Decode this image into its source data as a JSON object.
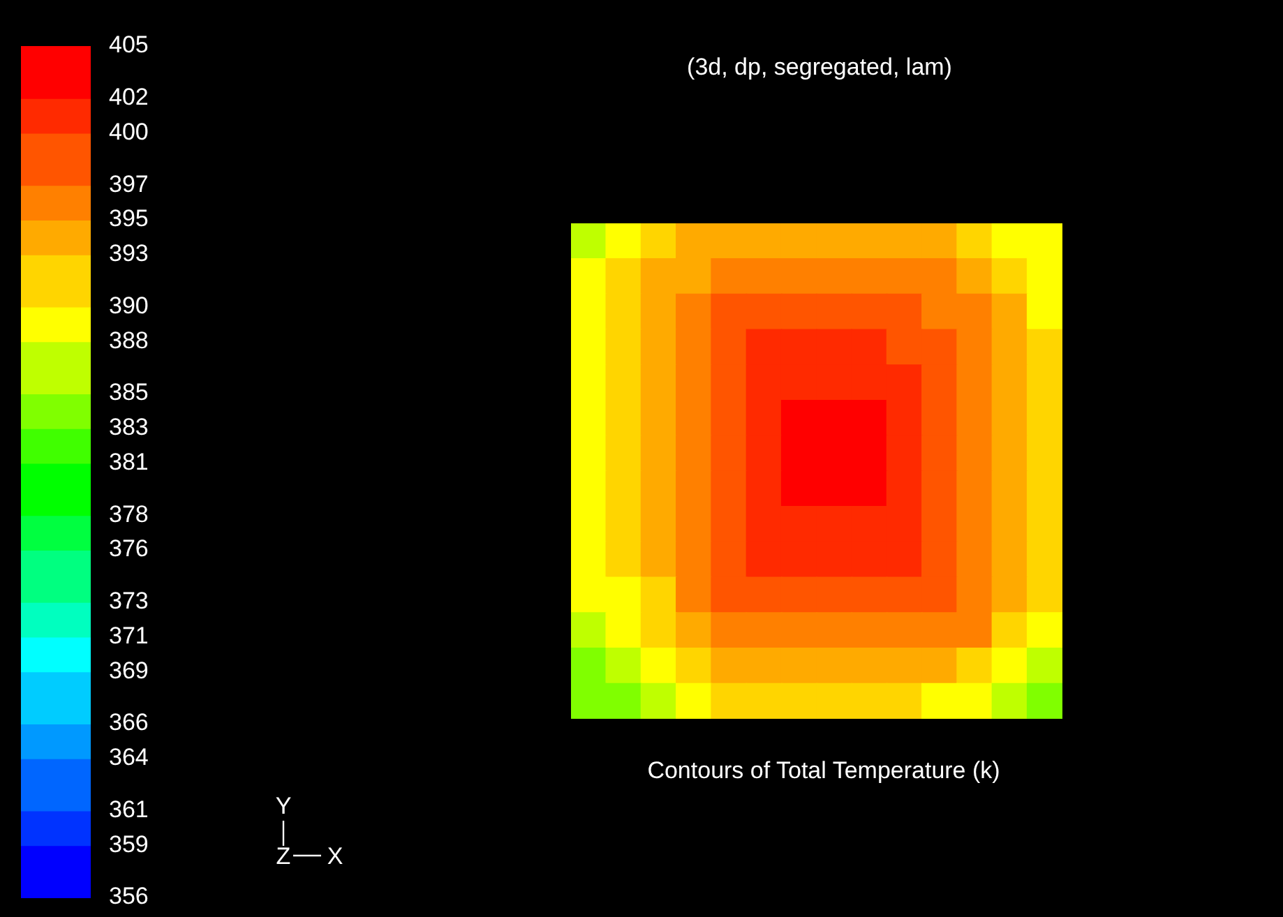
{
  "chart_data": {
    "type": "heatmap",
    "title": "(3d, dp, segregated, lam)",
    "annotations": [
      "Contours of Total Temperature (k)",
      "Y",
      "Z",
      "X"
    ],
    "categories": [
      null,
      null,
      null,
      null,
      null,
      null,
      null,
      null,
      null,
      null,
      null,
      null,
      null,
      null
    ],
    "y_categories": [
      null,
      null,
      null,
      null,
      null,
      null,
      null,
      null,
      null,
      null,
      null,
      null,
      null,
      null
    ],
    "clim": [
      356,
      405
    ],
    "cticks": [
      356,
      359,
      361,
      364,
      366,
      369,
      371,
      373,
      376,
      378,
      381,
      383,
      385,
      388,
      390,
      393,
      395,
      397,
      400,
      402,
      405
    ],
    "cells": [
      [
        386.5,
        389,
        391.5,
        394,
        394,
        394,
        394,
        394,
        394,
        394,
        394,
        391.5,
        389,
        389
      ],
      [
        389,
        391.5,
        394,
        394,
        396,
        396,
        396,
        396,
        396,
        396,
        396,
        394,
        391.5,
        389
      ],
      [
        389,
        391.5,
        394,
        396,
        398.5,
        398.5,
        398.5,
        398.5,
        398.5,
        398.5,
        396,
        396,
        394,
        389
      ],
      [
        389,
        391.5,
        394,
        396,
        398.5,
        401,
        401,
        401,
        401,
        398.5,
        398.5,
        396,
        394,
        391.5
      ],
      [
        389,
        391.5,
        394,
        396,
        398.5,
        401,
        401,
        401,
        401,
        401,
        398.5,
        396,
        394,
        391.5
      ],
      [
        389,
        391.5,
        394,
        396,
        398.5,
        401,
        403.5,
        403.5,
        403.5,
        401,
        398.5,
        396,
        394,
        391.5
      ],
      [
        389,
        391.5,
        394,
        396,
        398.5,
        401,
        403.5,
        403.5,
        403.5,
        401,
        398.5,
        396,
        394,
        391.5
      ],
      [
        389,
        391.5,
        394,
        396,
        398.5,
        401,
        403.5,
        403.5,
        403.5,
        401,
        398.5,
        396,
        394,
        391.5
      ],
      [
        389,
        391.5,
        394,
        396,
        398.5,
        401,
        401,
        401,
        401,
        401,
        398.5,
        396,
        394,
        391.5
      ],
      [
        389,
        391.5,
        394,
        396,
        398.5,
        401,
        401,
        401,
        401,
        401,
        398.5,
        396,
        394,
        391.5
      ],
      [
        389,
        389,
        391.5,
        396,
        398.5,
        398.5,
        398.5,
        398.5,
        398.5,
        398.5,
        398.5,
        396,
        394,
        391.5
      ],
      [
        386.5,
        389,
        391.5,
        394,
        396,
        396,
        396,
        396,
        396,
        396,
        396,
        396,
        391.5,
        389
      ],
      [
        384,
        386.5,
        389,
        391.5,
        394,
        394,
        394,
        394,
        394,
        394,
        394,
        391.5,
        389,
        386.5
      ],
      [
        384,
        384,
        386.5,
        389,
        391.5,
        391.5,
        391.5,
        391.5,
        391.5,
        391.5,
        389,
        389,
        386.5,
        384
      ]
    ]
  }
}
